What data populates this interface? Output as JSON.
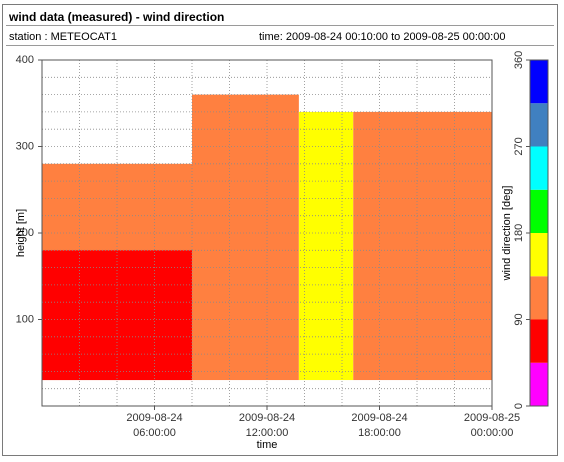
{
  "header": {
    "title": "wind data (measured) - wind direction",
    "station": "station : METEOCAT1",
    "timespan": "time: 2009-08-24 00:10:00 to 2009-08-25 00:00:00"
  },
  "chart_data": {
    "type": "heatmap",
    "title": "wind data (measured) - wind direction",
    "xlabel": "time",
    "ylabel": "height [m]",
    "colorbar_label": "wind direction [deg]",
    "xlim_hours": [
      0,
      24
    ],
    "x_ticks": [
      {
        "hour": 6,
        "line1": "2009-08-24",
        "line2": "06:00:00"
      },
      {
        "hour": 12,
        "line1": "2009-08-24",
        "line2": "12:00:00"
      },
      {
        "hour": 18,
        "line1": "2009-08-24",
        "line2": "18:00:00"
      },
      {
        "hour": 24,
        "line1": "2009-08-25",
        "line2": "00:00:00"
      }
    ],
    "ylim": [
      0,
      400
    ],
    "y_ticks": [
      100,
      200,
      300,
      400
    ],
    "grid": true,
    "height_bin_m": 10,
    "first_bin_m": 30,
    "colorbar": {
      "ticks": [
        0,
        90,
        180,
        270,
        360
      ],
      "bins": [
        {
          "from": 0,
          "to": 45,
          "color": "#ff00ff"
        },
        {
          "from": 45,
          "to": 90,
          "color": "#ff0000"
        },
        {
          "from": 90,
          "to": 135,
          "color": "#ff8040"
        },
        {
          "from": 135,
          "to": 180,
          "color": "#ffff00"
        },
        {
          "from": 180,
          "to": 225,
          "color": "#00ff00"
        },
        {
          "from": 225,
          "to": 270,
          "color": "#00ffff"
        },
        {
          "from": 270,
          "to": 315,
          "color": "#4080c0"
        },
        {
          "from": 315,
          "to": 360,
          "color": "#0000ff"
        }
      ]
    },
    "profiles": [
      {
        "from_h": 0.0,
        "to_h": 8.0,
        "top_m": 280,
        "color": "#ff8040",
        "note": "orange above"
      },
      {
        "from_h": 0.0,
        "to_h": 8.0,
        "top_m": 180,
        "color": "#ff0000",
        "note": "red low layer"
      },
      {
        "from_h": 8.0,
        "to_h": 13.7,
        "top_m": 360,
        "color": "#ff8040"
      },
      {
        "from_h": 13.7,
        "to_h": 16.6,
        "top_m": 340,
        "color": "#ffff00"
      },
      {
        "from_h": 16.6,
        "to_h": 24.0,
        "top_m": 340,
        "color": "#ff8040"
      }
    ]
  }
}
